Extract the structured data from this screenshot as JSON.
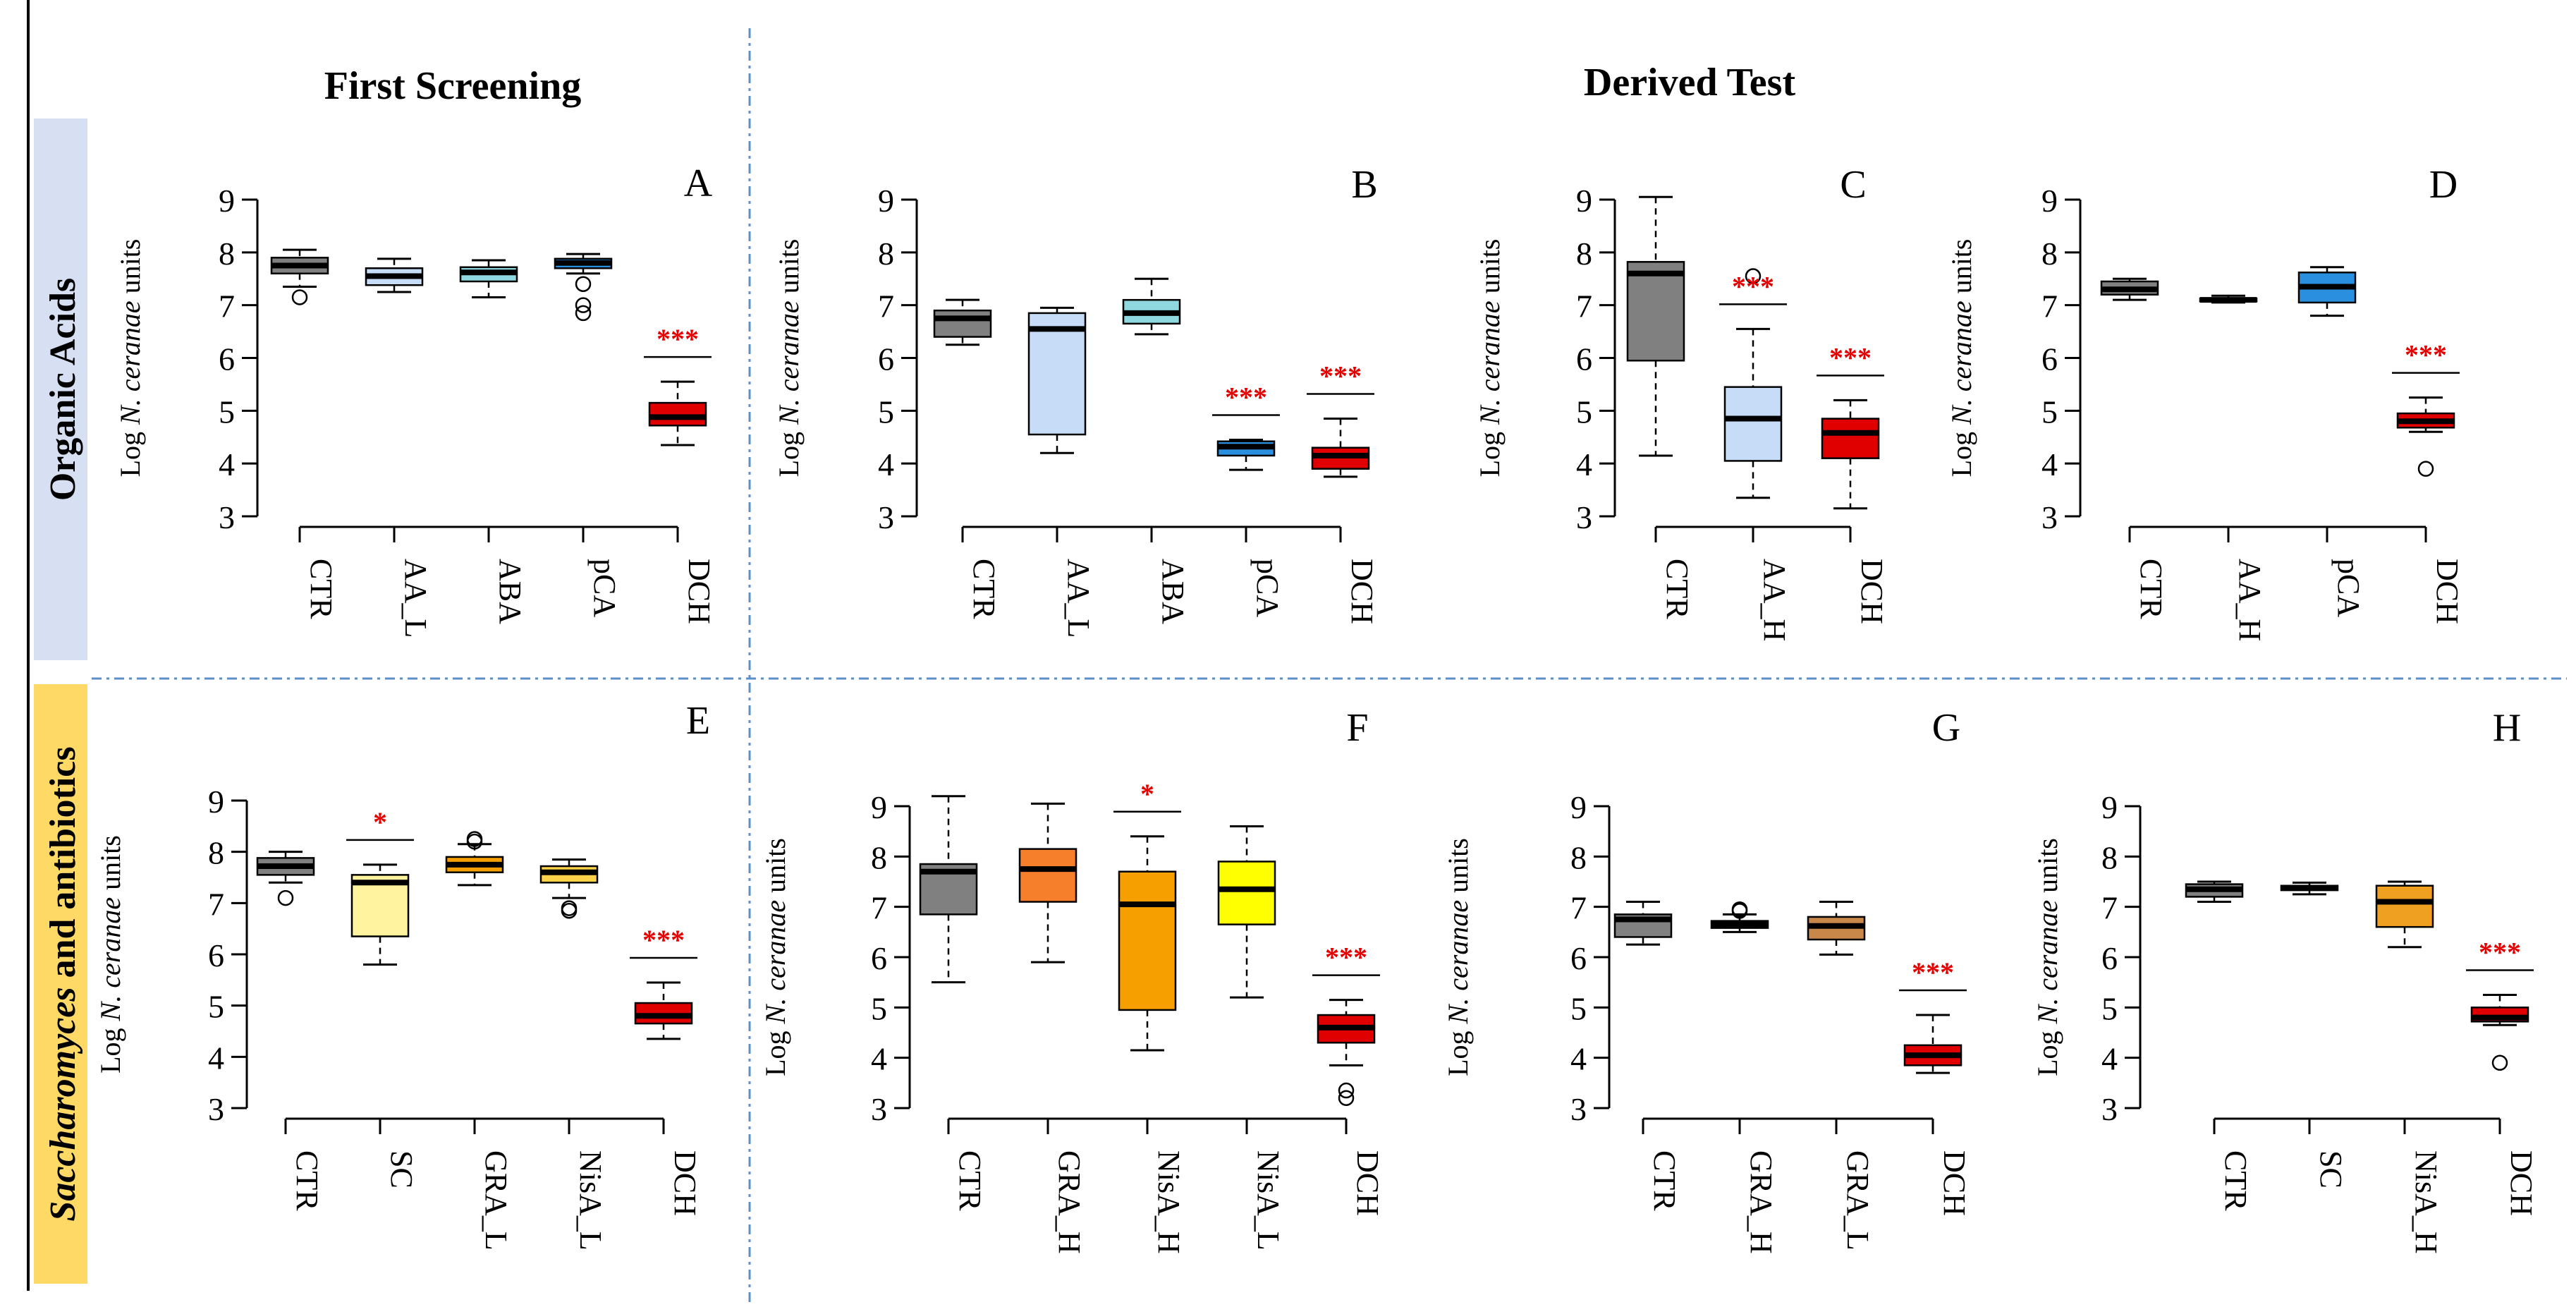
{
  "header": {
    "first_screening": "First Screening",
    "derived_test": "Derived Test"
  },
  "rows": {
    "organic_acids": "Organic Acids",
    "saccharomyces_italic": "Saccharomyces",
    "saccharomyces_rest": " and antibiotics"
  },
  "ylabel": {
    "prefix": "Log ",
    "italic": "N. ceranae",
    "suffix": " units"
  },
  "colors": {
    "CTR": "#808080",
    "AA_L": "#c6dcf7",
    "AA_H": "#c6dcf7",
    "ABA": "#8fd8e0",
    "pCA": "#2b8fe0",
    "DCH": "#e00000",
    "SC": "#fff3a0",
    "GRA_H_F": "#f57f2a",
    "GRA_H_G": "#c9955e",
    "GRA_L": "#c8884a",
    "NisA_H": "#f5a000",
    "NisA_L": "#ffff00",
    "NisA_H_H": "#f0a020",
    "accent_line": "#5b8fc8"
  },
  "chart_data": [
    {
      "panel": "A",
      "type": "box",
      "ylim": [
        3,
        9
      ],
      "yticks": [
        "3",
        "4",
        "5",
        "6",
        "7",
        "8",
        "9"
      ],
      "groups": [
        {
          "name": "CTR",
          "color": "#808080",
          "whisker_low": 7.35,
          "q1": 7.6,
          "median": 7.75,
          "q3": 7.9,
          "whisker_high": 8.05,
          "outliers": [
            7.15
          ],
          "sig": ""
        },
        {
          "name": "AA_L",
          "color": "#c6dcf7",
          "whisker_low": 7.25,
          "q1": 7.38,
          "median": 7.55,
          "q3": 7.7,
          "whisker_high": 7.88,
          "outliers": [],
          "sig": ""
        },
        {
          "name": "ABA",
          "color": "#8fd8e0",
          "whisker_low": 7.15,
          "q1": 7.45,
          "median": 7.62,
          "q3": 7.72,
          "whisker_high": 7.85,
          "outliers": [],
          "sig": ""
        },
        {
          "name": "pCA",
          "color": "#2b8fe0",
          "whisker_low": 7.6,
          "q1": 7.7,
          "median": 7.8,
          "q3": 7.88,
          "whisker_high": 7.97,
          "outliers": [
            7.4,
            7.0,
            6.85
          ],
          "sig": ""
        },
        {
          "name": "DCH",
          "color": "#e00000",
          "whisker_low": 4.35,
          "q1": 4.72,
          "median": 4.88,
          "q3": 5.15,
          "whisker_high": 5.55,
          "outliers": [],
          "sig": "***"
        }
      ]
    },
    {
      "panel": "B",
      "type": "box",
      "ylim": [
        3,
        9
      ],
      "yticks": [
        "3",
        "4",
        "5",
        "6",
        "7",
        "8",
        "9"
      ],
      "groups": [
        {
          "name": "CTR",
          "color": "#808080",
          "whisker_low": 6.25,
          "q1": 6.4,
          "median": 6.75,
          "q3": 6.9,
          "whisker_high": 7.1,
          "outliers": [],
          "sig": ""
        },
        {
          "name": "AA_L",
          "color": "#c6dcf7",
          "whisker_low": 4.2,
          "q1": 4.55,
          "median": 6.55,
          "q3": 6.85,
          "whisker_high": 6.95,
          "outliers": [],
          "sig": ""
        },
        {
          "name": "ABA",
          "color": "#8fd8e0",
          "whisker_low": 6.45,
          "q1": 6.65,
          "median": 6.85,
          "q3": 7.1,
          "whisker_high": 7.5,
          "outliers": [],
          "sig": ""
        },
        {
          "name": "pCA",
          "color": "#2b8fe0",
          "whisker_low": 3.88,
          "q1": 4.15,
          "median": 4.32,
          "q3": 4.42,
          "whisker_high": 4.45,
          "outliers": [],
          "sig": "***"
        },
        {
          "name": "DCH",
          "color": "#e00000",
          "whisker_low": 3.75,
          "q1": 3.9,
          "median": 4.15,
          "q3": 4.3,
          "whisker_high": 4.85,
          "outliers": [],
          "sig": "***"
        }
      ]
    },
    {
      "panel": "C",
      "type": "box",
      "ylim": [
        3,
        9
      ],
      "yticks": [
        "3",
        "4",
        "5",
        "6",
        "7",
        "8",
        "9"
      ],
      "groups": [
        {
          "name": "CTR",
          "color": "#808080",
          "whisker_low": 4.15,
          "q1": 5.95,
          "median": 7.6,
          "q3": 7.82,
          "whisker_high": 9.05,
          "outliers": [],
          "sig": ""
        },
        {
          "name": "AA_H",
          "color": "#c6dcf7",
          "whisker_low": 3.35,
          "q1": 4.05,
          "median": 4.85,
          "q3": 5.45,
          "whisker_high": 6.55,
          "outliers": [
            7.55
          ],
          "sig": "***"
        },
        {
          "name": "DCH",
          "color": "#e00000",
          "whisker_low": 3.15,
          "q1": 4.1,
          "median": 4.58,
          "q3": 4.85,
          "whisker_high": 5.2,
          "outliers": [],
          "sig": "***"
        }
      ]
    },
    {
      "panel": "D",
      "type": "box",
      "ylim": [
        3,
        9
      ],
      "yticks": [
        "3",
        "4",
        "5",
        "6",
        "7",
        "8",
        "9"
      ],
      "groups": [
        {
          "name": "CTR",
          "color": "#808080",
          "whisker_low": 7.1,
          "q1": 7.2,
          "median": 7.3,
          "q3": 7.45,
          "whisker_high": 7.5,
          "outliers": [],
          "sig": ""
        },
        {
          "name": "AA_H",
          "color": "#c6dcf7",
          "whisker_low": 7.05,
          "q1": 7.07,
          "median": 7.1,
          "q3": 7.13,
          "whisker_high": 7.18,
          "outliers": [],
          "sig": ""
        },
        {
          "name": "pCA",
          "color": "#2b8fe0",
          "whisker_low": 6.8,
          "q1": 7.05,
          "median": 7.35,
          "q3": 7.62,
          "whisker_high": 7.72,
          "outliers": [],
          "sig": ""
        },
        {
          "name": "DCH",
          "color": "#e00000",
          "whisker_low": 4.6,
          "q1": 4.68,
          "median": 4.8,
          "q3": 4.95,
          "whisker_high": 5.25,
          "outliers": [
            3.9
          ],
          "sig": "***"
        }
      ]
    },
    {
      "panel": "E",
      "type": "box",
      "ylim": [
        3,
        9
      ],
      "yticks": [
        "3",
        "4",
        "5",
        "6",
        "7",
        "8",
        "9"
      ],
      "groups": [
        {
          "name": "CTR",
          "color": "#808080",
          "whisker_low": 7.4,
          "q1": 7.55,
          "median": 7.72,
          "q3": 7.88,
          "whisker_high": 8.0,
          "outliers": [
            7.1
          ],
          "sig": ""
        },
        {
          "name": "SC",
          "color": "#fff3a0",
          "whisker_low": 5.8,
          "q1": 6.35,
          "median": 7.4,
          "q3": 7.55,
          "whisker_high": 7.75,
          "outliers": [],
          "sig": "*"
        },
        {
          "name": "GRA_L",
          "color": "#f5a000",
          "whisker_low": 7.35,
          "q1": 7.6,
          "median": 7.75,
          "q3": 7.9,
          "whisker_high": 8.15,
          "outliers": [
            8.25,
            8.2
          ],
          "sig": ""
        },
        {
          "name": "NisA_L",
          "color": "#ffd24a",
          "whisker_low": 7.1,
          "q1": 7.4,
          "median": 7.6,
          "q3": 7.72,
          "whisker_high": 7.85,
          "outliers": [
            6.9,
            6.85
          ],
          "sig": ""
        },
        {
          "name": "DCH",
          "color": "#e00000",
          "whisker_low": 4.35,
          "q1": 4.65,
          "median": 4.8,
          "q3": 5.05,
          "whisker_high": 5.45,
          "outliers": [],
          "sig": "***"
        }
      ]
    },
    {
      "panel": "F",
      "type": "box",
      "ylim": [
        3,
        9
      ],
      "yticks": [
        "3",
        "4",
        "5",
        "6",
        "7",
        "8",
        "9"
      ],
      "groups": [
        {
          "name": "CTR",
          "color": "#808080",
          "whisker_low": 5.5,
          "q1": 6.85,
          "median": 7.7,
          "q3": 7.85,
          "whisker_high": 9.2,
          "outliers": [],
          "sig": ""
        },
        {
          "name": "GRA_H",
          "color": "#f57f2a",
          "whisker_low": 5.9,
          "q1": 7.1,
          "median": 7.75,
          "q3": 8.15,
          "whisker_high": 9.05,
          "outliers": [],
          "sig": ""
        },
        {
          "name": "NisA_H",
          "color": "#f5a000",
          "whisker_low": 4.15,
          "q1": 4.95,
          "median": 7.05,
          "q3": 7.7,
          "whisker_high": 8.4,
          "outliers": [],
          "sig": "*"
        },
        {
          "name": "NisA_L",
          "color": "#ffff00",
          "whisker_low": 5.2,
          "q1": 6.65,
          "median": 7.35,
          "q3": 7.9,
          "whisker_high": 8.6,
          "outliers": [],
          "sig": ""
        },
        {
          "name": "DCH",
          "color": "#e00000",
          "whisker_low": 3.85,
          "q1": 4.3,
          "median": 4.6,
          "q3": 4.85,
          "whisker_high": 5.15,
          "outliers": [
            3.35,
            3.2
          ],
          "sig": "***"
        }
      ]
    },
    {
      "panel": "G",
      "type": "box",
      "ylim": [
        3,
        9
      ],
      "yticks": [
        "3",
        "4",
        "5",
        "6",
        "7",
        "8",
        "9"
      ],
      "groups": [
        {
          "name": "CTR",
          "color": "#808080",
          "whisker_low": 6.25,
          "q1": 6.4,
          "median": 6.75,
          "q3": 6.85,
          "whisker_high": 7.1,
          "outliers": [],
          "sig": ""
        },
        {
          "name": "GRA_H",
          "color": "#c9955e",
          "whisker_low": 6.5,
          "q1": 6.58,
          "median": 6.65,
          "q3": 6.72,
          "whisker_high": 6.85,
          "outliers": [
            6.95,
            6.92
          ],
          "sig": ""
        },
        {
          "name": "GRA_L",
          "color": "#c8884a",
          "whisker_low": 6.05,
          "q1": 6.35,
          "median": 6.62,
          "q3": 6.8,
          "whisker_high": 7.1,
          "outliers": [],
          "sig": ""
        },
        {
          "name": "DCH",
          "color": "#e00000",
          "whisker_low": 3.7,
          "q1": 3.85,
          "median": 4.05,
          "q3": 4.25,
          "whisker_high": 4.85,
          "outliers": [],
          "sig": "***"
        }
      ]
    },
    {
      "panel": "H",
      "type": "box",
      "ylim": [
        3,
        9
      ],
      "yticks": [
        "3",
        "4",
        "5",
        "6",
        "7",
        "8",
        "9"
      ],
      "groups": [
        {
          "name": "CTR",
          "color": "#808080",
          "whisker_low": 7.1,
          "q1": 7.2,
          "median": 7.35,
          "q3": 7.45,
          "whisker_high": 7.5,
          "outliers": [],
          "sig": ""
        },
        {
          "name": "SC",
          "color": "#c0c0c0",
          "whisker_low": 7.25,
          "q1": 7.33,
          "median": 7.38,
          "q3": 7.42,
          "whisker_high": 7.48,
          "outliers": [],
          "sig": ""
        },
        {
          "name": "NisA_H",
          "color": "#f0a020",
          "whisker_low": 6.2,
          "q1": 6.6,
          "median": 7.1,
          "q3": 7.42,
          "whisker_high": 7.5,
          "outliers": [],
          "sig": ""
        },
        {
          "name": "DCH",
          "color": "#e00000",
          "whisker_low": 4.65,
          "q1": 4.72,
          "median": 4.8,
          "q3": 5.0,
          "whisker_high": 5.25,
          "outliers": [
            3.9
          ],
          "sig": "***"
        }
      ]
    }
  ]
}
